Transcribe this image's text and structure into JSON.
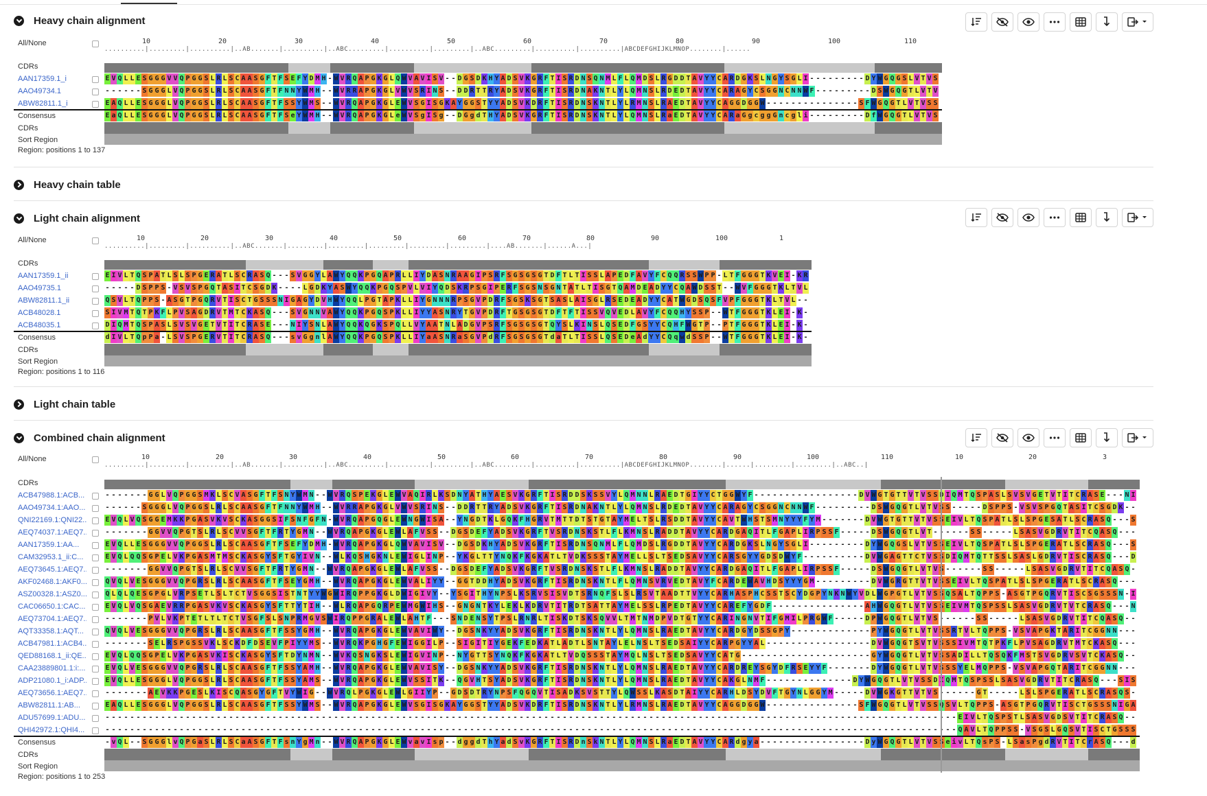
{
  "panels": {
    "heavy_alignment": {
      "title": "Heavy chain alignment",
      "all_none": "All/None",
      "ruler_numbers": [
        "10",
        "20",
        "30",
        "40",
        "50",
        "60",
        "70",
        "80",
        "90",
        "100",
        "110"
      ],
      "ruler_marks": "..........|.........|..........|..AB.......|..........|..ABC.........|..........|.........|..ABC.........|..........|..........|ABCDEFGHIJKLMNOP........|......",
      "track_label_cdrs": "CDRs",
      "sequences": [
        {
          "id": "AAN17359.1_i",
          "seq": "EVQLLESGGGVVQPGGSLRLSCAASGFTFSEFYDMH-WVRQAPGKGLQWVAVISV--DGSDKHYADSVKGRFTISRDNSQNMLFLQMDSLRGDDTAVYYCARDGKSLNGYSGLI---------DYWGQGSLVTVSS"
        },
        {
          "id": "AAO49734.1",
          "seq": "------SGGGLVQPGGSLRLSCAASGFTFNNYWMH--WVRRAPGKGLVWVSRINS--DDRTTRYADSVKGRFTISRDNAKNTLYLQMNSLRDEDTAVYYCARAGYCSGGNCNNWF---------DSWGQGTLVTVSS"
        },
        {
          "id": "ABW82811.1_i",
          "seq": "EAQLLESGGGLVQPGGSLRLSCAASGFTFSSYWMS--WVRQAPGKGLEWVSGISGKAYGGSTYYADSVKDRFTISRDNSKNTLYLRMNSLRAEDTAVYYCAGGDGGW---------------SFWGQGTLVTVSS"
        }
      ],
      "consensus_label": "Consensus",
      "consensus": "EaQLLESGGGLVQPGGSLRLSCAASGFTFSeYWMH--WVRQAPGKGLeWVSgISg--DGgdTHYADSVKGRFTISRDNSKNTLYLQMNSLRaEDTAVYYCARaGgcggGncgli---------DfWGQGTLVTVSS",
      "bottom_cdrs": "CDRs",
      "sort_region": "Sort Region",
      "region_text": "Region: positions 1 to 137"
    },
    "heavy_table": {
      "title": "Heavy chain table"
    },
    "light_alignment": {
      "title": "Light chain alignment",
      "all_none": "All/None",
      "ruler_numbers": [
        "10",
        "20",
        "30",
        "40",
        "50",
        "60",
        "70",
        "80",
        "90",
        "100",
        "1"
      ],
      "ruler_marks": "..........|.........|..........|..ABC.......|.........|.........|.........|.........|.........|....AB.......|......A...|",
      "track_label_cdrs": "CDRs",
      "sequences": [
        {
          "id": "AAN17359.1_ii",
          "seq": "EIVLTQSPATLSLSPGERATLSCRASQ---SVGGYLAWYQQKPGQAPRLLIYDASNRAAGIPSRFSGSGSGTDFTLTISSLAPEDFAVYFCQQRSSWPP-LTFGGGTKVEI-KRDY"
        },
        {
          "id": "AAO49735.1",
          "seq": "-----DSPPS-VSVSPGQTASITCSGDK----LGDKYASWYQQKPGQSPVLVIYQDSKRPSGIPERFSGSNSGNTATLTISGTQAMDEADYYCQAWDSST--WVFGGGTKLTVLG-"
        },
        {
          "id": "ABW82811.1_ii",
          "seq": "QSVLTQPPS-ASGTPGQRVTISCTGSSSNIGAGYDVHWYQQLPGTAPKLLIYGNNNRPSGVPDRFSGSKSGTSASLAISGLRSEDEADYYCATWGDSQSFVPFGGGTKLTVL---"
        },
        {
          "id": "ACB48028.1",
          "seq": "SIVMTQTPKFLPVSAGDRVTMTCKASQ---SVGNNVAWYQQKPGQSPKLLIYYASNRYTGVPDRFTGSGSGTDFTFTISSVQVEDLAVYFCQQHYSSP--WTFGGGTKLEI-K---"
        },
        {
          "id": "ACB48035.1",
          "seq": "DIQMTQSPASLSVSVGETVTITCRASE---NIYSNLAWYQQKQGKSPQLLVYAATNLADGVPSRFSGSGSGTQYSLKINSLQSEDFGSYYCQHFWGTP--PTFGGGTKLEI-K---"
        }
      ],
      "consensus_label": "Consensus",
      "consensus": "dIVLTQpPa-LSVSPGERVTITCRASQ---svGgnlAWYQQKPGQSPKLLIYaASNRaSGVPdRFSGSGSGTdaTLTISSLQSEDeAdYYCQqwdSSP--WTFGGGTKLEI-K---",
      "bottom_cdrs": "CDRs",
      "sort_region": "Sort Region",
      "region_text": "Region: positions 1 to 116"
    },
    "light_table": {
      "title": "Light chain table"
    },
    "combined_alignment": {
      "title": "Combined chain alignment",
      "all_none": "All/None",
      "ruler_numbers": [
        "10",
        "20",
        "30",
        "40",
        "50",
        "60",
        "70",
        "80",
        "90",
        "100",
        "110",
        "10",
        "20",
        "3"
      ],
      "ruler_marks": "..........|.........|..........|..AB.......|..........|..ABC.........|..........|.........|..ABC.........|..........|..........|ABCDEFGHIJKLMNOP........|......|.........|.........|..ABC..|",
      "track_label_cdrs": "CDRs",
      "sequences": [
        {
          "id": "ACB47988.1:ACB...",
          "seq": "-------GGLVQPGGSMKLSCVASGFTFSNYWMN--WVRQSPEKGLEWVAQIRLKSDNYATHYAESVKGRFTISRDDSKSSVYLQMNNLRAEDTGIYYCTGGWYF-----------------DVWGTGTTVTVSSDIQMTQSPASLSVSVGETVTITCRASE---NIY"
        },
        {
          "id": "AAO49734.1:AAO...",
          "seq": "------SGGGLVQPGGSLRLSCAASGFTFNNYWMH--WVRRAPGKGLVWVSRINS--DDRTTRYADSVKGRFTISRDNAKNTLYLQMNSLRDEDTAVYYCARAGYCSGGNCNNWF---------DSWGQGTLVTVSS-----DSPPS-VSVSPGQTASITCSGDK----LGD"
        },
        {
          "id": "QNI22169.1:QNI22...",
          "seq": "EVQLVQSGGEMKKPGASVKVSCKASGGSIFSNFGFN-WVRQAPGQGLEWNGWISA--YNGDTKLGQKFHGRVTMTTDTSTGTAYMELTSLRSDDTAVYYCAVTWHSTSMNYYYFYM-------DVWGTGTTVTVSSEIVLTQSPATLSLSPGESATLSCRASQ---SVS"
        },
        {
          "id": "AEQ74037.1:AEQ7...",
          "seq": "-------GGVVQPGTSLRLSCVVSGFTFRTYGMN--WVRQAPGKGLEWLAFVSS--DGSDEFYADSVKGRFTVSRDNSKSTLFLKMNSLRADDTAVYYCARDGAQITLFGAPLIRPSSF-----DSWGQGTLVT------SS-----LSASVGDRVTITCQASQ---DIT"
        },
        {
          "id": "AAN17359.1:AA...",
          "seq": "EVQLLESGGGVVQPGGSLRLSCAASGFTFSEFYDMH-WVRQAPGKGLQWVAVISV--DGSDKHYADSVKGRFTISRDNSQNMLFLQMDSLRGDDTAVYYCARDGKSLNGYSGLI---------DYWGQGSLVTVSSEIVLTQSPATLSLSPGERATLSCRASQ---SVG"
        },
        {
          "id": "CAM32953.1_ii:C...",
          "seq": "EVQLQQSGPELVKPGASMTMSCKASGYSFTGYIVN--WLKQSHGKNLEWIGLINP--YKGLTTYNQKFKGKATLTVDKSSSTAYMELLSLTSEDSAVYYCARSGYYGDSDWYF----------DVWGAGTTCTVSSDIQMTQTTSSLSASLGDRVTISCRASQ---DIS"
        },
        {
          "id": "AEQ73645.1:AEQ7...",
          "seq": "-------GGVVQPGTSLRLSCVVSGFTFRTYGMN--WVRQAPGKGLEWLAFVSS--DGSDEFYADSVKGRFTVSRDNSKSTLFLKMNSLRADDTAVYYCARDGAQITLFGAPLIRPSSF-----DSWGQGTLVTVS------SS-----LSASVGDRVTITCQASQ---DIT"
        },
        {
          "id": "AKF02468.1:AKF0...",
          "seq": "QVQLVESGGGVVQPGRSLRLSCAASGFTFSEYGMH--WVRQAPGKGLEWVALIYY--GGTDDHYADSVKGRFTISRDNSKNTLFLQMNSVRVEDTAVYFCARDEWAVHDSYYYGM---------DVWGRGTTVTVSSEIVLTQSPATLSLSPGERATLSCRASQ---SVS"
        },
        {
          "id": "ASZ00328.1:ASZ0...",
          "seq": "QLQLQESGPGLVRPSETLSLTCTVSGGSISTNTYYWGWIRQPPGKGLDWIGIVY--YSGITHYNPSLKSRVSISVDTSRNQFSLSLRSVTAADTTVYYCARHASPHCSSTSCYDGPYNKNWYVDLWGPGTLVTVSSQSALTQPPS-ASGTPGQRVTISCSGSSSN-IGS"
        },
        {
          "id": "CAC06650.1:CAC...",
          "seq": "EVQLVQSGAEVRRPGASVKVSCKASGYSFTTYTIH--WLRQAPGQRPEWMGWIHS--GNGNTKYLEKLKDRVTITRDTSATTAYMELSSLRPEDTAVYYCAREFYGDF---------------AHWGQGTLVTVSSEIVMTQSPSSLSASVGDRVTVTCRASQ---NIT"
        },
        {
          "id": "AEQ73704.1:AEQ7...",
          "seq": "-------PVLVKPTETLTLTCTVSGFSLSNPRMGVSWIRQPPGRALEWLAHTF---SNDENSYTPSLRNRLTISKDTSKSQVVLTMTNMDPVDTGTYYCARINGNVTIFGMILPRGWF-----DPWGQGTLVTVS------SS-----LSASVGDRVTITCQASQ---DIT"
        },
        {
          "id": "AQT33358.1:AQT...",
          "seq": "QVQLVESGGGVVQPGRSLRLSCAASGFTFSSYGMH--WVRQAPGKGLEWVAVIWY--DGSNKYYADSVKGRFTISRDNSKNTLYLQMNSLRAEDTAVYYCARDGYDSSGPY-------------PYWGQGTLVTVSSRTVLTQPPS-VSVAPGKTARITCGGNN---IGS"
        },
        {
          "id": "ACB47981.1:ACB4...",
          "seq": "-------SELRSPGSSVKLSCKDFDSEVFPIYYMS--WVRQKPGHGFEWIGGILP--SIGITIYGEKFEDKATLADTLSNTAYLELNSLTSEDSAIYYCARPGYYAL-----------------DVWGQGTSVTVSSSIVMTQTPKFLPVSAGDRVTMTCKASQ---SVG"
        },
        {
          "id": "QED88168.1_ii:QE...",
          "seq": "EVQLQQSGPELVKPGASVKISCKASGYSFTDYNMN--WVKQSNGKSLEWIGVINP--NYGTTSYNQKFKGKATLTVDQSSSTAYMQLNSLTSEDSAVYYCATG---------------------GYWGQGTLVTVSSADILLTQSQKFMSTSVGDRVSVTCKASQ---DVG"
        },
        {
          "id": "CAA23889801.1:i:...",
          "seq": "EVQLVESGGGVVQPGRSLRLSCAASGFTFSSYAMH--WVRQAPGKGLEWVAVISY--DGSNKYYADSVKGRFTISRDNSKNTLYLQMNSLRAEDTAVYYCARDREYSGYDFRSEYYF-------DYWGQGTLVTVSSSYELMQPPS-VSVAPGQTARITCGGNN---IGT"
        },
        {
          "id": "ADP21080.1_i:ADP...",
          "seq": "EVQLLESGGGLVQPGGSLRLSCAASGFTFSSYAMS--WVRQAPGKGLEWVSSITK--QGVHTSYADSVKGRFTISRDNSKNTLYLQMNSLRAEDTAVYYCAKGLNMF--------------DYWGQGTLVTVSSDIQMTQSPSSLSASVGDRVTITCRASQ---SIS"
        },
        {
          "id": "AEQ73656.1:AEQ7...",
          "seq": "-------AEVKKPGESLKISCQASGYGFTVYWIG--WVRQLPGKGLEWLGIIYP--GDSDTRYNPSFQGQVTISADKSVSTTYLQWSSLKASDTAIYYCARHLDSYDVFTGYNLGGYM-----DVWGKGTTVTVS------GT-----LSLSPGERATLSCRASQS--VSS"
        },
        {
          "id": "ABW82811.1:AB...",
          "seq": "EAQLLESGGGLVQPGGSLRLSCAASGFTFSSYWMS--WVRQAPGKGLEWVSGISGKAYGGSTYYADSVKDRFTISRDNSKNTLYLRMNSLRAEDTAVYYCAGGDGGW---------------SFWGQGTLVTVSSQSVLTQPPS-ASGTPGQRVTISCTGSSSNIGAG"
        },
        {
          "id": "ADU57699.1:ADU...",
          "seq": "------------------------------------------------------------------------------------------------------------------------------------------EIVLTQSPSTLSASVGDSVTITCRASQ---GIS"
        },
        {
          "id": "QHI42972.1:QHI4...",
          "seq": "------------------------------------------------------------------------------------------------------------------------------------------QAVLTQPPSS-VSGSLGQSVTISCTGSSSN-VGN"
        }
      ],
      "consensus_label": "Consensus",
      "consensus": "-vQL--SGGGlvQPGaSLRLSCaASGFTFsnYgMn--WVRQAPGKGLEWvavIsp--dggdThYadSvKGRFTISRDnSkNTLYLQMNSLRaEDTAVYYCARdgya-----------------DyWGQGTLVTVSSeivLTQsPS-LSasPgdRVTITCrASQ---dis",
      "bottom_cdrs": "CDRs",
      "sort_region": "Sort Region",
      "region_text": "Region: positions 1 to 253"
    }
  },
  "residue_colors": {
    "A": "#f0543c",
    "R": "#3a4ee0",
    "N": "#3ce0c8",
    "D": "#c8f050",
    "C": "#f0c83c",
    "Q": "#50f078",
    "E": "#78f03c",
    "G": "#f0a030",
    "H": "#3cb4f0",
    "I": "#f03cc8",
    "L": "#f0f050",
    "K": "#7a3cf0",
    "M": "#dc3cf0",
    "F": "#3cf0b4",
    "P": "#f08c3c",
    "S": "#f07830",
    "T": "#e8e850",
    "W": "#0a3ca0",
    "Y": "#3c78f0",
    "V": "#e050c8",
    "gap": "#ffffff"
  },
  "toolbar_icons": [
    "sort-icon",
    "hide-icon",
    "eye-icon",
    "more-icon",
    "grid-icon",
    "wrap-icon",
    "export-icon"
  ]
}
